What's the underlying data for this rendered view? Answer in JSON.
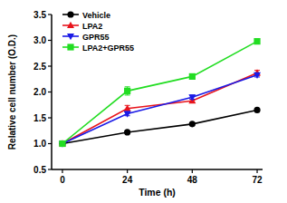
{
  "chart_data": {
    "type": "line",
    "x_label": "Time (h)",
    "y_label": "Relative cell number (O.D.)",
    "x": [
      0,
      24,
      48,
      72
    ],
    "xlim": [
      -4,
      74
    ],
    "xticks": [
      0,
      24,
      48,
      72
    ],
    "ylim": [
      0.5,
      3.5
    ],
    "yticks": [
      {
        "value": 0.5,
        "label": "0.5"
      },
      {
        "value": 1.0,
        "label": "1.0"
      },
      {
        "value": 1.5,
        "label": "1.5"
      },
      {
        "value": 2.0,
        "label": "2.0"
      },
      {
        "value": 2.5,
        "label": "2.5"
      },
      {
        "value": 3.0,
        "label": "3.0"
      },
      {
        "value": 3.5,
        "label": "3.5"
      }
    ],
    "grid": false,
    "legend": "top-left",
    "series": [
      {
        "name": "Vehicle",
        "color": "#000000",
        "marker": "circle",
        "line_style": "solid",
        "values": [
          1.0,
          1.22,
          1.38,
          1.65
        ],
        "errors": [
          0,
          0.02,
          0.02,
          0.03
        ]
      },
      {
        "name": "LPA2",
        "color": "#e8141c",
        "marker": "triangle",
        "line_style": "solid",
        "values": [
          1.0,
          1.68,
          1.83,
          2.37
        ],
        "errors": [
          0,
          0.06,
          0.03,
          0.05
        ]
      },
      {
        "name": "GPR55",
        "color": "#1a1ae6",
        "marker": "triangle-down",
        "line_style": "solid",
        "values": [
          1.0,
          1.58,
          1.9,
          2.33
        ],
        "errors": [
          0,
          0.04,
          0.04,
          0.04
        ]
      },
      {
        "name": "LPA2+GPR55",
        "color": "#22dd22",
        "marker": "square",
        "line_style": "solid",
        "values": [
          1.0,
          2.02,
          2.3,
          2.98
        ],
        "errors": [
          0,
          0.08,
          0.03,
          0.03
        ]
      }
    ]
  }
}
